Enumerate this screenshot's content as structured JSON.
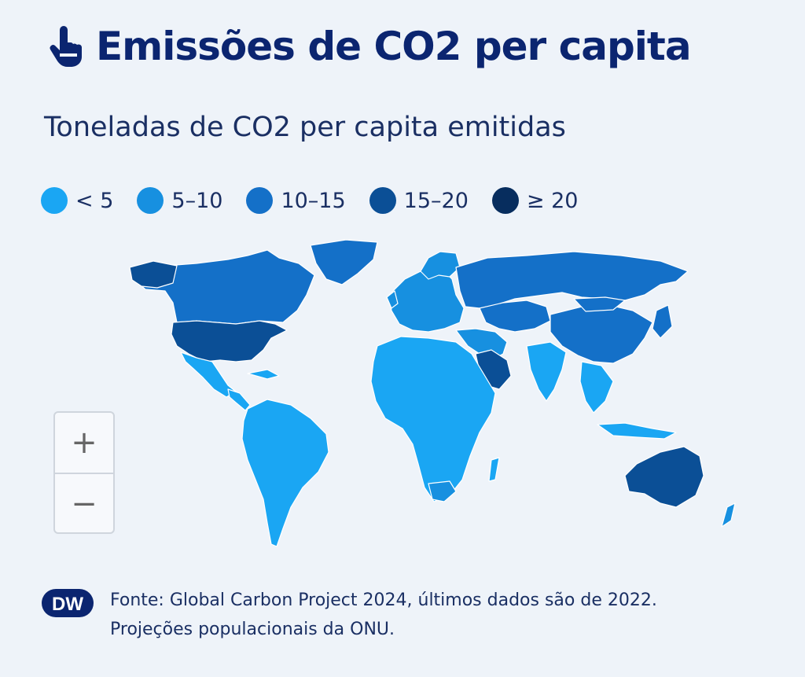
{
  "header": {
    "icon": "pointer-hand-icon",
    "title": "Emissões de CO2 per capita"
  },
  "subtitle": "Toneladas de CO2 per capita emitidas",
  "legend": [
    {
      "label": "< 5",
      "color": "#1aa6f3"
    },
    {
      "label": "5–10",
      "color": "#1790e0"
    },
    {
      "label": "10–15",
      "color": "#1470c8"
    },
    {
      "label": "15–20",
      "color": "#0b4f96"
    },
    {
      "label": "≥ 20",
      "color": "#072d5e"
    }
  ],
  "map": {
    "background": "#eef3f9",
    "country_border": "#ffffff"
  },
  "zoom": {
    "in": "+",
    "out": "−"
  },
  "footer": {
    "logo": "DW",
    "source_line1": "Fonte: Global Carbon Project 2024, últimos dados são de 2022.",
    "source_line2": "Projeções populacionais da ONU."
  }
}
